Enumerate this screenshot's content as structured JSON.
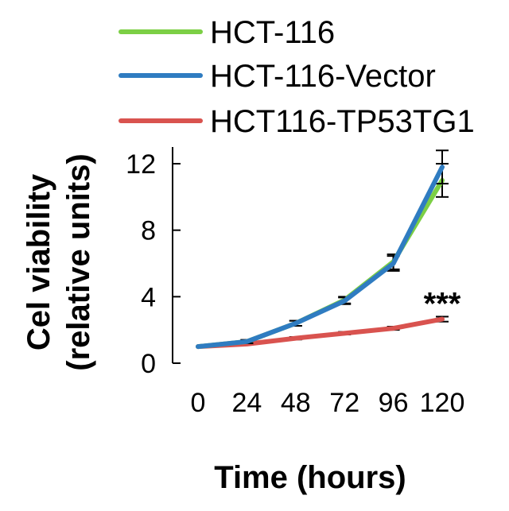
{
  "chart_data": {
    "type": "line",
    "x": [
      0,
      24,
      48,
      72,
      96,
      120
    ],
    "x_tick_labels": [
      "0",
      "24",
      "48",
      "72",
      "96",
      "120"
    ],
    "y_ticks": [
      0,
      4,
      8,
      12
    ],
    "ylim": [
      0,
      12.5
    ],
    "xlabel": "Time (hours)",
    "ylabel_lines": [
      "Cel viability",
      "(relative units)"
    ],
    "legend_position": "top",
    "grid": false,
    "series": [
      {
        "name": "HCT-116",
        "color": "#7ccf45",
        "values": [
          1.0,
          1.3,
          2.4,
          3.8,
          6.1,
          11.0
        ],
        "errors": [
          0,
          0.1,
          0.15,
          0.2,
          0.45,
          1.0
        ]
      },
      {
        "name": "HCT-116-Vector",
        "color": "#2f7cc1",
        "values": [
          1.0,
          1.3,
          2.4,
          3.75,
          6.0,
          11.8
        ],
        "errors": [
          0,
          0.1,
          0.15,
          0.2,
          0.45,
          1.0
        ]
      },
      {
        "name": "HCT116-TP53TG1",
        "color": "#d9534f",
        "values": [
          1.0,
          1.15,
          1.5,
          1.8,
          2.1,
          2.65
        ],
        "errors": [
          0,
          0.05,
          0.08,
          0.08,
          0.1,
          0.15
        ]
      }
    ],
    "annotations": [
      {
        "text": "***",
        "x": 120,
        "y": 3.6
      }
    ]
  }
}
